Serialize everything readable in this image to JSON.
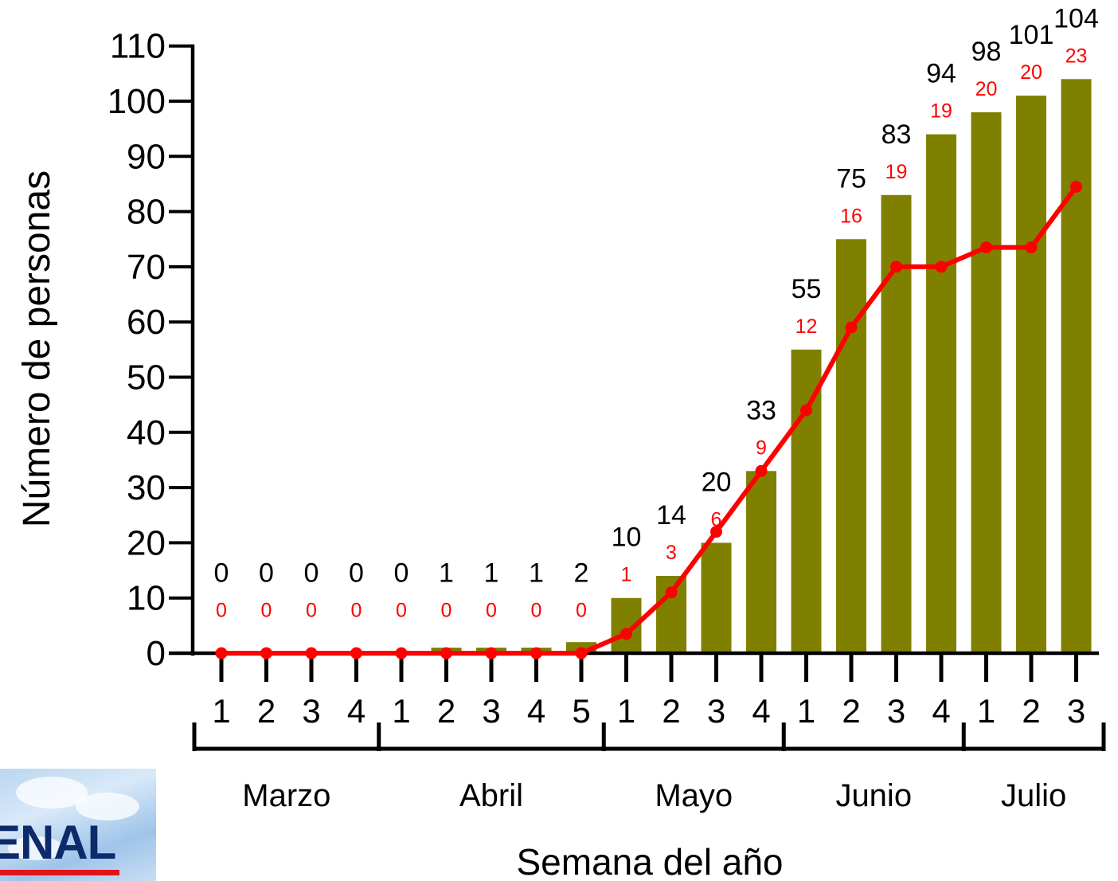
{
  "chart_data": {
    "type": "bar",
    "ylabel": "Número de personas",
    "xlabel": "Semana del año",
    "ylim": [
      0,
      110
    ],
    "yticks": [
      "0",
      "10",
      "20",
      "30",
      "40",
      "50",
      "60",
      "70",
      "80",
      "90",
      "100",
      "110"
    ],
    "categories": [
      "1",
      "2",
      "3",
      "4",
      "1",
      "2",
      "3",
      "4",
      "5",
      "1",
      "2",
      "3",
      "4",
      "1",
      "2",
      "3",
      "4",
      "1",
      "2",
      "3"
    ],
    "months": [
      {
        "label": "Marzo",
        "weeks": 4
      },
      {
        "label": "Abril",
        "weeks": 5
      },
      {
        "label": "Mayo",
        "weeks": 4
      },
      {
        "label": "Junio",
        "weeks": 4
      },
      {
        "label": "Julio",
        "weeks": 3
      }
    ],
    "series": [
      {
        "type": "bar",
        "color": "#808000",
        "values": [
          0,
          0,
          0,
          0,
          0,
          1,
          1,
          1,
          2,
          10,
          14,
          20,
          33,
          55,
          75,
          83,
          94,
          98,
          101,
          104
        ],
        "labels": [
          "0",
          "0",
          "0",
          "0",
          "0",
          "1",
          "1",
          "1",
          "2",
          "10",
          "14",
          "20",
          "33",
          "55",
          "75",
          "83",
          "94",
          "98",
          "101",
          "104"
        ]
      },
      {
        "type": "line",
        "color": "#ff0000",
        "values": [
          0,
          0,
          0,
          0,
          0,
          0,
          0,
          0,
          0,
          3.5,
          11,
          22,
          33,
          44,
          59,
          70,
          70,
          73.5,
          73.5,
          84.5
        ],
        "labels": [
          "0",
          "0",
          "0",
          "0",
          "0",
          "0",
          "0",
          "0",
          "0",
          "1",
          "3",
          "6",
          "9",
          "12",
          "16",
          "19",
          "19",
          "20",
          "20",
          "23"
        ]
      }
    ]
  },
  "logo": {
    "text": "ENAL"
  }
}
